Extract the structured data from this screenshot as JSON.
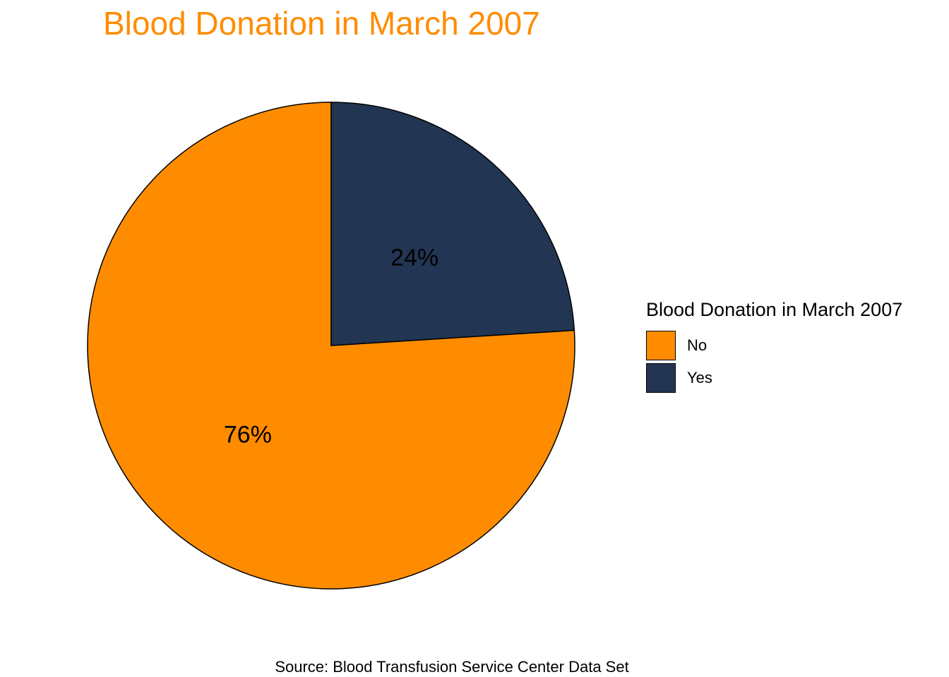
{
  "chart_data": {
    "type": "pie",
    "title": "Blood Donation in March 2007",
    "caption": "Source: Blood Transfusion Service Center Data Set",
    "legend": {
      "title": "Blood Donation in March 2007",
      "position": "right"
    },
    "slices": [
      {
        "label": "No",
        "value": 76,
        "display": "76%",
        "color": "#FF8C00"
      },
      {
        "label": "Yes",
        "value": 24,
        "display": "24%",
        "color": "#223553"
      }
    ]
  }
}
